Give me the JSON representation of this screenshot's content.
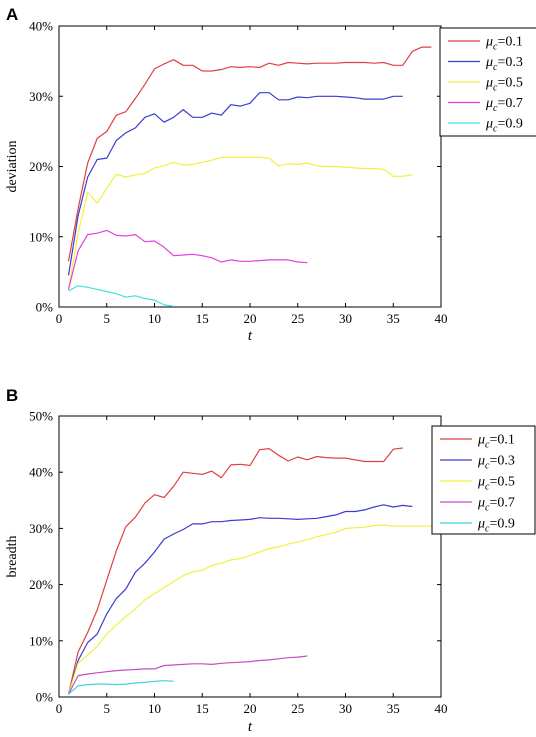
{
  "chart_data": [
    {
      "type": "line",
      "panel_label": "A",
      "xlabel": "t",
      "ylabel": "deviation",
      "xlim": [
        0,
        40
      ],
      "ylim": [
        0,
        40
      ],
      "xticks": [
        "0",
        "5",
        "10",
        "15",
        "20",
        "25",
        "30",
        "35",
        "40"
      ],
      "yticks": [
        "0%",
        "10%",
        "20%",
        "30%",
        "40%"
      ],
      "legend_position": "top-right",
      "series": [
        {
          "name": "μc=0.1",
          "legend_symbol": "μ",
          "legend_sub": "c",
          "legend_value": "=0.1",
          "color": "#e04040",
          "x": [
            1,
            2,
            3,
            4,
            5,
            6,
            7,
            8,
            9,
            10,
            11,
            12,
            13,
            14,
            15,
            16,
            17,
            18,
            19,
            20,
            21,
            22,
            23,
            24,
            25,
            26,
            27,
            28,
            29,
            30,
            31,
            32,
            33,
            34,
            35,
            36,
            37,
            38,
            39
          ],
          "y": [
            6.5,
            14,
            20.5,
            24,
            25,
            27.3,
            27.8,
            29.7,
            31.7,
            33.9,
            34.6,
            35.2,
            34.4,
            34.4,
            33.6,
            33.6,
            33.8,
            34.2,
            34.1,
            34.2,
            34.1,
            34.7,
            34.4,
            34.8,
            34.7,
            34.6,
            34.7,
            34.7,
            34.7,
            34.8,
            34.8,
            34.8,
            34.7,
            34.8,
            34.4,
            34.4,
            36.4,
            37.0,
            37.0
          ]
        },
        {
          "name": "μc=0.3",
          "legend_symbol": "μ",
          "legend_sub": "c",
          "legend_value": "=0.3",
          "color": "#3c3cd0",
          "x": [
            1,
            2,
            3,
            4,
            5,
            6,
            7,
            8,
            9,
            10,
            11,
            12,
            13,
            14,
            15,
            16,
            17,
            18,
            19,
            20,
            21,
            22,
            23,
            24,
            25,
            26,
            27,
            28,
            29,
            30,
            31,
            32,
            33,
            34,
            35,
            36
          ],
          "y": [
            4.5,
            13,
            18.5,
            21,
            21.2,
            23.7,
            24.8,
            25.5,
            27,
            27.5,
            26.3,
            27,
            28.1,
            27,
            27,
            27.6,
            27.3,
            28.8,
            28.6,
            29,
            30.5,
            30.5,
            29.5,
            29.5,
            29.9,
            29.8,
            30,
            30,
            30,
            29.9,
            29.8,
            29.6,
            29.6,
            29.6,
            30,
            30
          ]
        },
        {
          "name": "μc=0.5",
          "legend_symbol": "μ",
          "legend_sub": "c",
          "legend_value": "=0.5",
          "color": "#f0f040",
          "x": [
            1,
            2,
            3,
            4,
            5,
            6,
            7,
            8,
            9,
            10,
            11,
            12,
            13,
            14,
            15,
            16,
            17,
            18,
            19,
            20,
            21,
            22,
            23,
            24,
            25,
            26,
            27,
            28,
            29,
            30,
            31,
            32,
            33,
            34,
            35,
            36,
            37
          ],
          "y": [
            2.5,
            10.5,
            16.3,
            14.8,
            16.9,
            18.9,
            18.5,
            18.8,
            19,
            19.8,
            20.1,
            20.6,
            20.2,
            20.3,
            20.6,
            20.9,
            21.3,
            21.3,
            21.3,
            21.3,
            21.3,
            21.2,
            20.1,
            20.4,
            20.3,
            20.5,
            20.1,
            20,
            20,
            19.9,
            19.8,
            19.7,
            19.7,
            19.6,
            18.6,
            18.6,
            18.8
          ]
        },
        {
          "name": "μc=0.7",
          "legend_symbol": "μ",
          "legend_sub": "c",
          "legend_value": "=0.7",
          "color": "#e040e0",
          "x": [
            1,
            2,
            3,
            4,
            5,
            6,
            7,
            8,
            9,
            10,
            11,
            12,
            13,
            14,
            15,
            16,
            17,
            18,
            19,
            20,
            21,
            22,
            23,
            24,
            25,
            26
          ],
          "y": [
            2.5,
            8,
            10.3,
            10.5,
            10.9,
            10.2,
            10.1,
            10.3,
            9.3,
            9.4,
            8.5,
            7.3,
            7.4,
            7.5,
            7.3,
            7,
            6.4,
            6.7,
            6.5,
            6.5,
            6.6,
            6.7,
            6.7,
            6.7,
            6.4,
            6.3
          ]
        },
        {
          "name": "μc=0.9",
          "legend_symbol": "μ",
          "legend_sub": "c",
          "legend_value": "=0.9",
          "color": "#40e0e0",
          "x": [
            1,
            2,
            3,
            4,
            5,
            6,
            7,
            8,
            9,
            10,
            11,
            12
          ],
          "y": [
            2.3,
            3,
            2.8,
            2.5,
            2.2,
            1.9,
            1.4,
            1.6,
            1.2,
            1.0,
            0.3,
            0.1
          ]
        }
      ]
    },
    {
      "type": "line",
      "panel_label": "B",
      "xlabel": "t",
      "ylabel": "breadth",
      "xlim": [
        0,
        40
      ],
      "ylim": [
        0,
        50
      ],
      "xticks": [
        "0",
        "5",
        "10",
        "15",
        "20",
        "25",
        "30",
        "35",
        "40"
      ],
      "yticks": [
        "0%",
        "10%",
        "20%",
        "30%",
        "40%",
        "50%"
      ],
      "legend_position": "top-right",
      "series": [
        {
          "name": "μc=0.1",
          "legend_symbol": "μ",
          "legend_sub": "c",
          "legend_value": "=0.1",
          "color": "#e04040",
          "x": [
            1,
            2,
            3,
            4,
            5,
            6,
            7,
            8,
            9,
            10,
            11,
            12,
            13,
            14,
            15,
            16,
            17,
            18,
            19,
            20,
            21,
            22,
            23,
            24,
            25,
            26,
            27,
            28,
            29,
            30,
            31,
            32,
            33,
            34,
            35,
            36
          ],
          "y": [
            0.5,
            8,
            11.5,
            15.5,
            20.8,
            26,
            30.3,
            32,
            34.5,
            36,
            35.5,
            37.5,
            40,
            39.8,
            39.6,
            40.2,
            39,
            41.3,
            41.4,
            41.2,
            44,
            44.2,
            43,
            42,
            42.7,
            42.2,
            42.8,
            42.6,
            42.5,
            42.5,
            42.2,
            41.9,
            41.9,
            41.9,
            44.1,
            44.3
          ]
        },
        {
          "name": "μc=0.3",
          "legend_symbol": "μ",
          "legend_sub": "c",
          "legend_value": "=0.3",
          "color": "#3c3cd0",
          "x": [
            1,
            2,
            3,
            4,
            5,
            6,
            7,
            8,
            9,
            10,
            11,
            12,
            13,
            14,
            15,
            16,
            17,
            18,
            19,
            20,
            21,
            22,
            23,
            24,
            25,
            26,
            27,
            28,
            29,
            30,
            31,
            32,
            33,
            34,
            35,
            36,
            37
          ],
          "y": [
            0.5,
            6.5,
            9.7,
            11.2,
            14.8,
            17.5,
            19.2,
            22.2,
            23.8,
            25.8,
            28.1,
            29,
            29.8,
            30.8,
            30.8,
            31.2,
            31.2,
            31.4,
            31.5,
            31.6,
            31.9,
            31.8,
            31.8,
            31.7,
            31.6,
            31.7,
            31.8,
            32.1,
            32.4,
            33,
            33,
            33.3,
            33.8,
            34.2,
            33.8,
            34.1,
            33.9
          ]
        },
        {
          "name": "μc=0.5",
          "legend_symbol": "μ",
          "legend_sub": "c",
          "legend_value": "=0.5",
          "color": "#f0f040",
          "x": [
            1,
            2,
            3,
            4,
            5,
            6,
            7,
            8,
            9,
            10,
            11,
            12,
            13,
            14,
            15,
            16,
            17,
            18,
            19,
            20,
            21,
            22,
            23,
            24,
            25,
            26,
            27,
            28,
            29,
            30,
            31,
            32,
            33,
            34,
            35,
            36,
            37,
            38,
            39
          ],
          "y": [
            0.5,
            6,
            7.5,
            9,
            11.2,
            12.8,
            14.3,
            15.7,
            17.3,
            18.4,
            19.5,
            20.5,
            21.6,
            22.3,
            22.5,
            23.4,
            23.8,
            24.4,
            24.6,
            25.2,
            25.8,
            26.4,
            26.7,
            27.2,
            27.6,
            28,
            28.5,
            28.9,
            29.3,
            30,
            30.1,
            30.2,
            30.5,
            30.6,
            30.4,
            30.4,
            30.4,
            30.4,
            30.4
          ]
        },
        {
          "name": "μc=0.7",
          "legend_symbol": "μ",
          "legend_sub": "c",
          "legend_value": "=0.7",
          "color": "#c050c0",
          "x": [
            1,
            2,
            3,
            4,
            5,
            6,
            7,
            8,
            9,
            10,
            11,
            12,
            13,
            14,
            15,
            16,
            17,
            18,
            19,
            20,
            21,
            22,
            23,
            24,
            25,
            26
          ],
          "y": [
            0.5,
            3.8,
            4.1,
            4.3,
            4.5,
            4.7,
            4.8,
            4.9,
            5,
            5,
            5.6,
            5.7,
            5.8,
            5.9,
            5.9,
            5.8,
            6,
            6.1,
            6.2,
            6.3,
            6.5,
            6.6,
            6.8,
            7.0,
            7.1,
            7.3
          ]
        },
        {
          "name": "μc=0.9",
          "legend_symbol": "μ",
          "legend_sub": "c",
          "legend_value": "=0.9",
          "color": "#40d0e0",
          "x": [
            1,
            2,
            3,
            4,
            5,
            6,
            7,
            8,
            9,
            10,
            11,
            12
          ],
          "y": [
            0.5,
            2,
            2.2,
            2.3,
            2.3,
            2.2,
            2.3,
            2.5,
            2.6,
            2.8,
            2.9,
            2.8
          ]
        }
      ]
    }
  ]
}
